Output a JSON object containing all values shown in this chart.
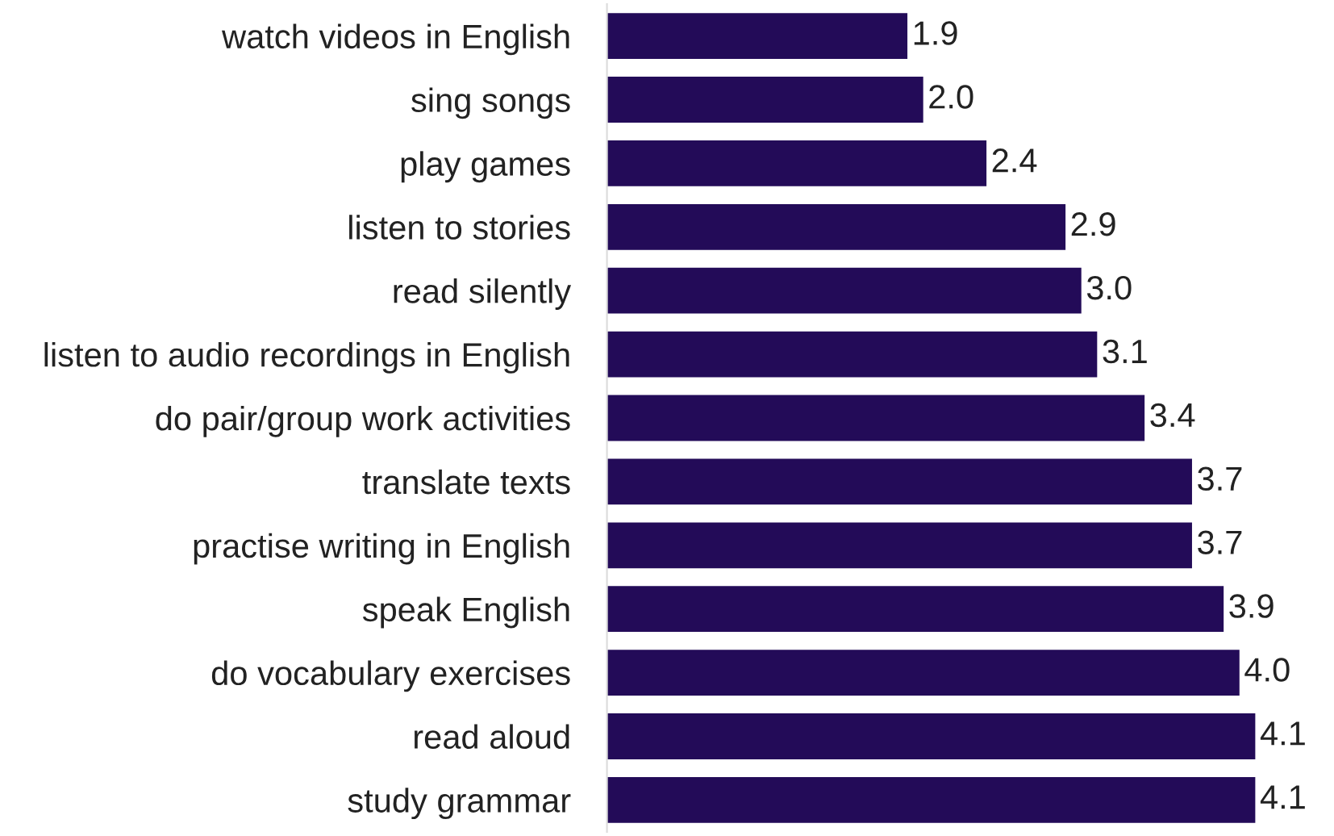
{
  "chart_data": {
    "type": "bar",
    "orientation": "horizontal",
    "categories": [
      "watch videos in English",
      "sing songs",
      "play games",
      "listen to stories",
      "read silently",
      "listen to audio recordings in English",
      "do pair/group work activities",
      "translate texts",
      "practise writing in English",
      "speak English",
      "do vocabulary exercises",
      "read aloud",
      "study grammar"
    ],
    "values": [
      1.9,
      2.0,
      2.4,
      2.9,
      3.0,
      3.1,
      3.4,
      3.7,
      3.7,
      3.9,
      4.0,
      4.1,
      4.1
    ],
    "value_labels": [
      "1.9",
      "2.0",
      "2.4",
      "2.9",
      "3.0",
      "3.1",
      "3.4",
      "3.7",
      "3.7",
      "3.9",
      "4.0",
      "4.1",
      "4.1"
    ],
    "color": "#230b58",
    "grid": false,
    "legend": false,
    "tick_labels": "y"
  }
}
